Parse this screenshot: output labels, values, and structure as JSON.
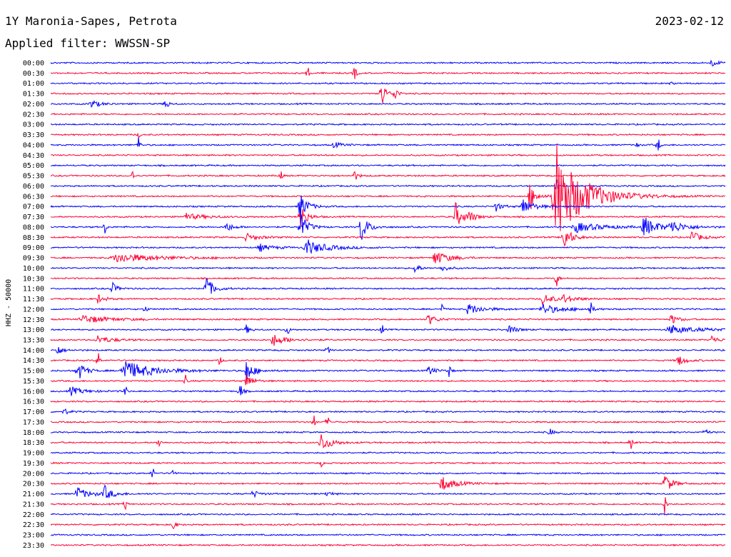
{
  "header": {
    "station": "1Y Maronia-Sapes, Petrota",
    "date": "2023-02-12",
    "filter": "Applied filter: WWSSN-SP"
  },
  "chart_data": {
    "type": "line",
    "ylabel": "HHZ - 50000",
    "colors": [
      "#0000ff",
      "#ff0033"
    ],
    "rows": [
      {
        "time": "00:00",
        "events": [
          [
            0.98,
            4,
            0.01
          ]
        ]
      },
      {
        "time": "00:30",
        "events": [
          [
            0.38,
            8,
            0.003
          ],
          [
            0.45,
            9,
            0.003
          ]
        ]
      },
      {
        "time": "01:00",
        "events": [
          [
            0.92,
            3,
            0.002
          ]
        ]
      },
      {
        "time": "01:30",
        "events": [
          [
            0.49,
            18,
            0.006
          ],
          [
            0.51,
            10,
            0.004
          ]
        ]
      },
      {
        "time": "02:00",
        "events": [
          [
            0.06,
            5,
            0.012
          ],
          [
            0.17,
            9,
            0.004
          ]
        ]
      },
      {
        "time": "02:30",
        "events": []
      },
      {
        "time": "03:00",
        "events": []
      },
      {
        "time": "03:30",
        "events": [
          [
            0.13,
            3,
            0.003
          ]
        ]
      },
      {
        "time": "04:00",
        "events": [
          [
            0.13,
            12,
            0.002
          ],
          [
            0.42,
            4,
            0.01
          ],
          [
            0.87,
            8,
            0.002
          ],
          [
            0.9,
            10,
            0.002
          ]
        ]
      },
      {
        "time": "04:30",
        "events": []
      },
      {
        "time": "05:00",
        "events": []
      },
      {
        "time": "05:30",
        "events": [
          [
            0.12,
            8,
            0.002
          ],
          [
            0.34,
            9,
            0.002
          ],
          [
            0.45,
            5,
            0.006
          ]
        ]
      },
      {
        "time": "06:00",
        "events": [
          [
            0.75,
            12,
            0.002
          ]
        ]
      },
      {
        "time": "06:30",
        "events": [
          [
            0.75,
            60,
            0.04
          ],
          [
            0.71,
            16,
            0.01
          ]
        ]
      },
      {
        "time": "07:00",
        "events": [
          [
            0.37,
            18,
            0.01
          ],
          [
            0.7,
            10,
            0.015
          ],
          [
            0.66,
            5,
            0.01
          ]
        ]
      },
      {
        "time": "07:30",
        "events": [
          [
            0.2,
            4,
            0.03
          ],
          [
            0.37,
            20,
            0.008
          ],
          [
            0.6,
            16,
            0.01
          ],
          [
            0.62,
            6,
            0.01
          ]
        ]
      },
      {
        "time": "08:00",
        "events": [
          [
            0.08,
            10,
            0.002
          ],
          [
            0.26,
            6,
            0.01
          ],
          [
            0.37,
            18,
            0.01
          ],
          [
            0.46,
            18,
            0.01
          ],
          [
            0.78,
            6,
            0.04
          ],
          [
            0.88,
            12,
            0.02
          ],
          [
            0.92,
            7,
            0.02
          ]
        ]
      },
      {
        "time": "08:30",
        "events": [
          [
            0.29,
            4,
            0.02
          ],
          [
            0.76,
            18,
            0.01
          ],
          [
            0.95,
            8,
            0.012
          ]
        ]
      },
      {
        "time": "09:00",
        "events": [
          [
            0.31,
            4,
            0.02
          ],
          [
            0.38,
            9,
            0.03
          ]
        ]
      },
      {
        "time": "09:30",
        "events": [
          [
            0.1,
            6,
            0.06
          ],
          [
            0.57,
            9,
            0.02
          ]
        ]
      },
      {
        "time": "10:00",
        "events": [
          [
            0.54,
            10,
            0.005
          ],
          [
            0.58,
            4,
            0.01
          ]
        ]
      },
      {
        "time": "10:30",
        "events": [
          [
            0.75,
            14,
            0.002
          ]
        ]
      },
      {
        "time": "11:00",
        "events": [
          [
            0.09,
            8,
            0.008
          ],
          [
            0.23,
            16,
            0.01
          ]
        ]
      },
      {
        "time": "11:30",
        "events": [
          [
            0.07,
            5,
            0.01
          ],
          [
            0.73,
            7,
            0.015
          ],
          [
            0.76,
            4,
            0.02
          ]
        ]
      },
      {
        "time": "12:00",
        "events": [
          [
            0.14,
            6,
            0.002
          ],
          [
            0.58,
            8,
            0.002
          ],
          [
            0.62,
            7,
            0.02
          ],
          [
            0.73,
            6,
            0.03
          ],
          [
            0.8,
            8,
            0.003
          ]
        ]
      },
      {
        "time": "12:30",
        "events": [
          [
            0.05,
            5,
            0.04
          ],
          [
            0.56,
            6,
            0.012
          ],
          [
            0.92,
            6,
            0.01
          ]
        ]
      },
      {
        "time": "13:00",
        "events": [
          [
            0.29,
            5,
            0.006
          ],
          [
            0.35,
            7,
            0.003
          ],
          [
            0.49,
            9,
            0.002
          ],
          [
            0.68,
            6,
            0.01
          ],
          [
            0.92,
            5,
            0.04
          ]
        ]
      },
      {
        "time": "13:30",
        "events": [
          [
            0.07,
            5,
            0.02
          ],
          [
            0.33,
            7,
            0.02
          ],
          [
            0.98,
            5,
            0.01
          ]
        ]
      },
      {
        "time": "14:00",
        "events": [
          [
            0.01,
            6,
            0.008
          ],
          [
            0.41,
            5,
            0.002
          ]
        ]
      },
      {
        "time": "14:30",
        "events": [
          [
            0.07,
            12,
            0.002
          ],
          [
            0.25,
            7,
            0.002
          ],
          [
            0.93,
            7,
            0.01
          ]
        ]
      },
      {
        "time": "15:00",
        "events": [
          [
            0.04,
            14,
            0.01
          ],
          [
            0.11,
            13,
            0.04
          ],
          [
            0.29,
            12,
            0.012
          ],
          [
            0.56,
            5,
            0.01
          ],
          [
            0.59,
            9,
            0.002
          ]
        ]
      },
      {
        "time": "15:30",
        "events": [
          [
            0.29,
            10,
            0.008
          ],
          [
            0.2,
            6,
            0.002
          ]
        ]
      },
      {
        "time": "16:00",
        "events": [
          [
            0.03,
            5,
            0.02
          ],
          [
            0.11,
            9,
            0.002
          ],
          [
            0.28,
            9,
            0.004
          ]
        ]
      },
      {
        "time": "16:30",
        "events": []
      },
      {
        "time": "17:00",
        "events": [
          [
            0.02,
            4,
            0.006
          ]
        ]
      },
      {
        "time": "17:30",
        "events": [
          [
            0.39,
            8,
            0.002
          ],
          [
            0.41,
            8,
            0.002
          ]
        ]
      },
      {
        "time": "18:00",
        "events": [
          [
            0.74,
            6,
            0.004
          ],
          [
            0.97,
            5,
            0.004
          ]
        ]
      },
      {
        "time": "18:30",
        "events": [
          [
            0.4,
            12,
            0.015
          ],
          [
            0.16,
            8,
            0.002
          ],
          [
            0.86,
            7,
            0.002
          ]
        ]
      },
      {
        "time": "19:00",
        "events": []
      },
      {
        "time": "19:30",
        "events": [
          [
            0.4,
            4,
            0.004
          ]
        ]
      },
      {
        "time": "20:00",
        "events": [
          [
            0.15,
            9,
            0.002
          ],
          [
            0.18,
            9,
            0.002
          ]
        ]
      },
      {
        "time": "20:30",
        "events": [
          [
            0.58,
            9,
            0.02
          ],
          [
            0.91,
            14,
            0.01
          ]
        ]
      },
      {
        "time": "21:00",
        "events": [
          [
            0.04,
            7,
            0.02
          ],
          [
            0.08,
            8,
            0.012
          ],
          [
            0.3,
            4,
            0.01
          ],
          [
            0.41,
            5,
            0.006
          ]
        ]
      },
      {
        "time": "21:30",
        "events": [
          [
            0.11,
            8,
            0.002
          ],
          [
            0.91,
            14,
            0.002
          ]
        ]
      },
      {
        "time": "22:00",
        "events": []
      },
      {
        "time": "22:30",
        "events": [
          [
            0.18,
            9,
            0.004
          ]
        ]
      },
      {
        "time": "23:00",
        "events": []
      },
      {
        "time": "23:30",
        "events": []
      }
    ]
  }
}
